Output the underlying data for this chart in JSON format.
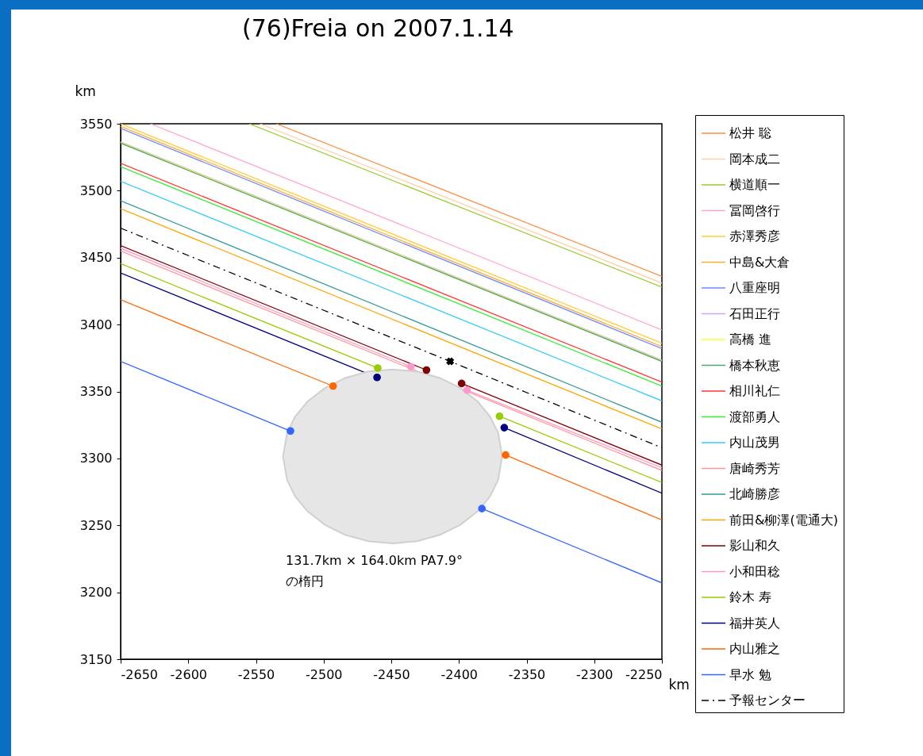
{
  "chart_data": {
    "type": "line",
    "title": "(76)Freia on 2007.1.14",
    "xlabel": "km",
    "ylabel": "km",
    "xlim": [
      -2650,
      -2250
    ],
    "xticks": [
      -2650,
      -2600,
      -2550,
      -2500,
      -2450,
      -2400,
      -2350,
      -2300,
      -2250
    ],
    "ylim": [
      3150,
      3550
    ],
    "yticks": [
      3150,
      3200,
      3250,
      3300,
      3350,
      3400,
      3450,
      3500,
      3550
    ],
    "grid": false,
    "legend": "right",
    "line_style": "solid",
    "annotations": [
      "131.7km × 164.0km PA7.9°\nの楕円"
    ],
    "series": [
      {
        "name": "松井 聡",
        "color": "#ff8c40",
        "x": [
          -2535,
          -2250
        ],
        "values": [
          3550,
          3436
        ]
      },
      {
        "name": "岡本成二",
        "color": "#ffd0a8",
        "x": [
          -2547,
          -2250
        ],
        "values": [
          3550,
          3431
        ]
      },
      {
        "name": "横道順一",
        "color": "#99cc33",
        "x": [
          -2555,
          -2250
        ],
        "values": [
          3550,
          3428
        ]
      },
      {
        "name": "冨岡啓行",
        "color": "#ffa6d2",
        "x": [
          -2628,
          -2250
        ],
        "values": [
          3550,
          3396
        ]
      },
      {
        "name": "赤澤秀彦",
        "color": "#ffcc33",
        "x": [
          -2650,
          -2250
        ],
        "values": [
          3550,
          3386
        ]
      },
      {
        "name": "中島&大倉",
        "color": "#ffaa33",
        "x": [
          -2650,
          -2250
        ],
        "values": [
          3548,
          3383.5
        ]
      },
      {
        "name": "八重座明",
        "color": "#6b8cff",
        "x": [
          -2650,
          -2250
        ],
        "values": [
          3546.5,
          3382
        ]
      },
      {
        "name": "石田正行",
        "color": "#cca6ff",
        "x": [
          -2650,
          -2250
        ],
        "values": [
          3536.5,
          3373.5
        ]
      },
      {
        "name": "高橋 進",
        "color": "#ffff33",
        "x": [
          -2650,
          -2250
        ],
        "values": [
          3536,
          3373
        ]
      },
      {
        "name": "橋本秋恵",
        "color": "#4da66b",
        "x": [
          -2650,
          -2250
        ],
        "values": [
          3535.5,
          3372.5
        ]
      },
      {
        "name": "相川礼仁",
        "color": "#ff3333",
        "x": [
          -2650,
          -2250
        ],
        "values": [
          3520.5,
          3357
        ]
      },
      {
        "name": "渡部勇人",
        "color": "#33ee33",
        "x": [
          -2650,
          -2250
        ],
        "values": [
          3518,
          3354
        ]
      },
      {
        "name": "内山茂男",
        "color": "#33ccff",
        "x": [
          -2650,
          -2250
        ],
        "values": [
          3507,
          3343
        ]
      },
      {
        "name": "唐崎秀芳",
        "color": "#ff9999",
        "x": [
          -2650,
          -2250
        ],
        "values": [
          3455,
          3291
        ]
      },
      {
        "name": "北崎勝彦",
        "color": "#339999",
        "x": [
          -2650,
          -2250
        ],
        "values": [
          3492.5,
          3327
        ]
      },
      {
        "name": "前田&柳澤(電通大)",
        "color": "#ffa500",
        "x": [
          -2650,
          -2250
        ],
        "values": [
          3486.5,
          3322
        ]
      },
      {
        "name": "影山和久",
        "color": "#800000",
        "marker": "circle",
        "x": [
          -2650,
          -2424,
          -2411,
          -2398,
          -2250
        ],
        "values": [
          3459,
          3366,
          null,
          3356,
          3295
        ]
      },
      {
        "name": "小和田稔",
        "color": "#ff99cc",
        "marker": "circle",
        "x": [
          -2650,
          -2435.5,
          -2415,
          -2394,
          -2250
        ],
        "values": [
          3457,
          3368.5,
          null,
          3351,
          3293
        ]
      },
      {
        "name": "鈴木 寿",
        "color": "#99cc00",
        "marker": "circle",
        "x": [
          -2650,
          -2460,
          -2415,
          -2370,
          -2250
        ],
        "values": [
          3445.5,
          3367.5,
          null,
          3331.5,
          3282
        ]
      },
      {
        "name": "福井英人",
        "color": "#000080",
        "marker": "circle",
        "x": [
          -2650,
          -2460.5,
          -2413,
          -2366.5,
          -2250
        ],
        "values": [
          3438.5,
          3360.5,
          null,
          3323,
          3274
        ]
      },
      {
        "name": "内山雅之",
        "color": "#ff6600",
        "marker": "circle",
        "x": [
          -2650,
          -2493,
          -2429,
          -2365.5,
          -2250
        ],
        "values": [
          3418.5,
          3354,
          null,
          3302.5,
          3254
        ]
      },
      {
        "name": "早水 勉",
        "color": "#3366ff",
        "marker": "circle",
        "x": [
          -2650,
          -2524.5,
          -2454,
          -2383,
          -2250
        ],
        "values": [
          3372.5,
          3320.5,
          null,
          3262.5,
          3207
        ]
      },
      {
        "name": "予報センター",
        "color": "#000000",
        "line_style": "dashed",
        "x": [
          -2650,
          -2406.5,
          -2250
        ],
        "values": [
          3472,
          3372.5,
          3308
        ]
      },
      {
        "type": "scatter",
        "color": "#000000",
        "marker": "cross",
        "x": [
          -2406.5
        ],
        "values": [
          3372.5
        ]
      },
      {
        "type": "area",
        "color": "#e6e6e6",
        "x": [
          -2530,
          -2527,
          -2521,
          -2512,
          -2499,
          -2484,
          -2467,
          -2449,
          -2431,
          -2414,
          -2399,
          -2386,
          -2377,
          -2371,
          -2368,
          -2371,
          -2377,
          -2386,
          -2399,
          -2414,
          -2431,
          -2449,
          -2467,
          -2484,
          -2499,
          -2512,
          -2521,
          -2527,
          -2530
        ],
        "values": [
          3301.5,
          3319,
          3331.3,
          3342.4,
          3352.6,
          3360.1,
          3364.9,
          3366.5,
          3364.9,
          3360.1,
          3352.6,
          3342.4,
          3331.3,
          3319,
          3301.5,
          3284,
          3271.7,
          3260.6,
          3250.4,
          3242.9,
          3238.1,
          3236.5,
          3238.1,
          3242.9,
          3250.4,
          3260.6,
          3271.7,
          3284,
          3301.5
        ]
      }
    ]
  }
}
